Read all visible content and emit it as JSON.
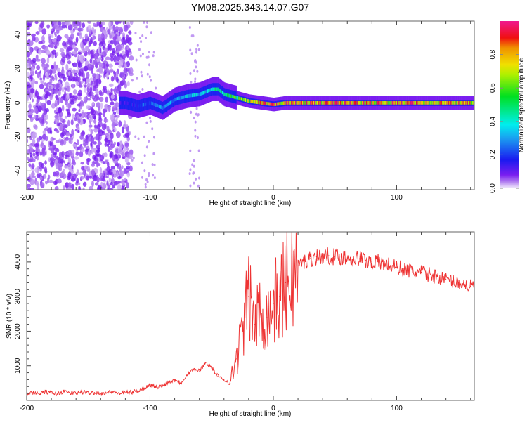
{
  "chart_data": [
    {
      "type": "heatmap",
      "title": "YM08.2025.343.14.07.G07",
      "xlabel": "Height of straight line (km)",
      "ylabel": "Frequency (Hz)",
      "xlim": [
        -200,
        163
      ],
      "ylim": [
        -51,
        48
      ],
      "xticks": [
        "-200",
        "-100",
        "0",
        "100"
      ],
      "yticks": [
        "40",
        "20",
        "0",
        "-20",
        "-40"
      ],
      "colorbar": {
        "label": "Normalized spectral amplitude",
        "ticks": [
          "0.0",
          "0.2",
          "0.4",
          "0.6",
          "0.8"
        ],
        "range": [
          0,
          1
        ]
      },
      "ridge": {
        "height_km": [
          -120,
          -110,
          -100,
          -90,
          -80,
          -70,
          -60,
          -50,
          -45,
          -40,
          -30,
          -20,
          -10,
          0,
          10,
          160
        ],
        "frequency_hz": [
          0,
          -2,
          0,
          -3,
          2,
          4,
          5,
          8,
          8,
          5,
          3,
          1,
          0,
          -1,
          0,
          0
        ],
        "amplitude": [
          0.15,
          0.2,
          0.25,
          0.3,
          0.3,
          0.35,
          0.35,
          0.4,
          0.45,
          0.45,
          0.55,
          0.7,
          0.8,
          0.85,
          0.85,
          0.8
        ]
      }
    },
    {
      "type": "line",
      "xlabel": "Height of straight line (km)",
      "ylabel": "SNR (10 * v/v)",
      "xlim": [
        -200,
        163
      ],
      "ylim": [
        0,
        4870
      ],
      "xticks": [
        "-200",
        "-100",
        "0",
        "100"
      ],
      "yticks": [
        "1000",
        "2000",
        "3000",
        "4000"
      ],
      "color": "#ee3333",
      "x_start": -200,
      "x_step": 5,
      "values": [
        200,
        230,
        180,
        250,
        210,
        190,
        260,
        220,
        200,
        240,
        210,
        230,
        190,
        220,
        250,
        200,
        220,
        230,
        280,
        350,
        450,
        380,
        420,
        520,
        600,
        500,
        750,
        900,
        850,
        1100,
        950,
        700,
        600,
        500,
        1200,
        2000,
        3000,
        2200,
        2600,
        2400,
        2800,
        3000,
        3400,
        3600,
        3900,
        4000,
        4100,
        4150,
        4150,
        4180,
        4150,
        4150,
        4120,
        4100,
        4100,
        4050,
        4000,
        4000,
        3950,
        3900,
        3850,
        3800,
        3750,
        3700,
        3700,
        3650,
        3600,
        3550,
        3500,
        3450,
        3400,
        3350,
        3300
      ]
    }
  ]
}
